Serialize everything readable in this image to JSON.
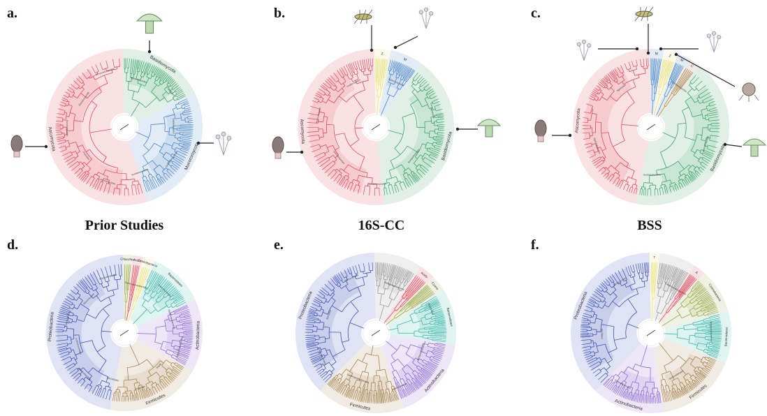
{
  "labels": {
    "a": "a.",
    "b": "b.",
    "c": "c.",
    "d": "d.",
    "e": "e.",
    "f": "f."
  },
  "columns": [
    "Prior Studies",
    "16S-CC",
    "BSS"
  ],
  "colors": {
    "red": "#e04a5a",
    "green": "#3da46a",
    "blue": "#4d87c7",
    "yellow": "#e8e07a",
    "navy": "#3d53b8",
    "purple": "#8f6bd6",
    "tan": "#a7844f",
    "teal": "#3cb8a8",
    "olive": "#9aa84a",
    "grey": "#9a9a9a"
  },
  "panels": [
    {
      "id": "a",
      "clades": [
        {
          "name": "Basidiomycota",
          "color": "green",
          "weight": 2
        },
        {
          "name": "Mucoromycota",
          "color": "blue",
          "weight": 3
        },
        {
          "name": "Ascomycota",
          "color": "red",
          "weight": 6
        }
      ],
      "sub": [
        "Agaricomycetes",
        "Agaricales",
        "Orbiliomycetes",
        "Dothideomycetes",
        "Sordariomycetes",
        "Pezizomycetes",
        "Pezizales",
        "Eurotiomycetes",
        "Glomeromycota",
        "Mortierellomycetes"
      ]
    },
    {
      "id": "b",
      "clades": [
        {
          "name": "Z",
          "color": "yellow",
          "weight": 0.4
        },
        {
          "name": "M",
          "color": "blue",
          "weight": 0.8
        },
        {
          "name": "Basidiomycota",
          "color": "green",
          "weight": 4.5
        },
        {
          "name": "Ascomycota",
          "color": "red",
          "weight": 6
        }
      ],
      "sub": [
        "Agaricomycetes",
        "Agaricales",
        "Sordariomycetes",
        "Dothideomycetes",
        "Eurotiomycetes",
        "Pezizomycetes",
        "Leotiomycetes"
      ]
    },
    {
      "id": "c",
      "clades": [
        {
          "name": "M",
          "color": "blue",
          "weight": 0.35
        },
        {
          "name": "Z",
          "color": "yellow",
          "weight": 0.35
        },
        {
          "name": "M",
          "color": "blue",
          "weight": 0.3
        },
        {
          "name": "C",
          "color": "tan",
          "weight": 0.3
        },
        {
          "name": "Basidiomycota",
          "color": "green",
          "weight": 5
        },
        {
          "name": "Ascomycota",
          "color": "red",
          "weight": 5.5
        }
      ],
      "sub": [
        "Dothideomycetes",
        "Pezizomycetes",
        "Sordariomycetes",
        "Agaricomycetes",
        "Agaricales"
      ]
    },
    {
      "id": "d",
      "clades": [
        {
          "name": "Chloroflexi",
          "color": "olive",
          "weight": 0.25
        },
        {
          "name": "Acido",
          "color": "red",
          "weight": 0.25
        },
        {
          "name": "Cyanobacteria",
          "color": "yellow",
          "weight": 0.3
        },
        {
          "name": "Bacteroidetes",
          "color": "teal",
          "weight": 1.4
        },
        {
          "name": "Actinobacteria",
          "color": "purple",
          "weight": 1.8
        },
        {
          "name": "Firmicutes",
          "color": "tan",
          "weight": 2.4
        },
        {
          "name": "Proteobacteria",
          "color": "navy",
          "weight": 5.6
        }
      ],
      "sub": [
        "Gammaproteobacteria",
        "Enterobacterales",
        "Betaproteobacteria",
        "Alphaproteobacteria",
        "Bacilli",
        "Clostridia",
        "Rhizobiales",
        "Burkholderiales",
        "Actinomycetales",
        "Lactobacillales",
        "Micrococcales",
        "Rhodobacterales"
      ]
    },
    {
      "id": "e",
      "clades": [
        {
          "name": "",
          "color": "grey",
          "weight": 1.2
        },
        {
          "name": "Acido",
          "color": "red",
          "weight": 0.4
        },
        {
          "name": "Cyano",
          "color": "olive",
          "weight": 0.4
        },
        {
          "name": "Bacteroidetes",
          "color": "teal",
          "weight": 1.4
        },
        {
          "name": "Actinobacteria",
          "color": "purple",
          "weight": 2.1
        },
        {
          "name": "Firmicutes",
          "color": "tan",
          "weight": 2.2
        },
        {
          "name": "Proteobacteria",
          "color": "navy",
          "weight": 4.6
        }
      ],
      "sub": [
        "Alphaproteobacteria",
        "Rhizobiales",
        "Betaproteobacteria",
        "Burkholderiales",
        "Gammaproteobacteria",
        "Enterobacterales",
        "Bacillales",
        "Micrococcales"
      ]
    },
    {
      "id": "f",
      "clades": [
        {
          "name": "T",
          "color": "yellow",
          "weight": 0.25
        },
        {
          "name": "",
          "color": "grey",
          "weight": 0.9
        },
        {
          "name": "A",
          "color": "red",
          "weight": 0.3
        },
        {
          "name": "Cyanobacteria",
          "color": "olive",
          "weight": 1.1
        },
        {
          "name": "Bacteroidetes",
          "color": "teal",
          "weight": 1.3
        },
        {
          "name": "Firmicutes",
          "color": "tan",
          "weight": 2.0
        },
        {
          "name": "Actinobacteria",
          "color": "purple",
          "weight": 1.8
        },
        {
          "name": "Proteobacteria",
          "color": "navy",
          "weight": 4.6
        }
      ],
      "sub": [
        "Gammaproteobacteria",
        "Betaproteobacteria",
        "Burkholderiales",
        "Enterobacterales",
        "Bacillales",
        "Micrococcales"
      ]
    }
  ],
  "organisms": {
    "a": [
      "mushroom-icon",
      "morel-icon",
      "mold-icon"
    ],
    "b": [
      "insect-icon",
      "mold-icon",
      "mushroom-icon",
      "morel-icon"
    ],
    "c": [
      "insect-icon",
      "mold-icon",
      "mold-icon",
      "puffball-icon",
      "mushroom-icon",
      "morel-icon"
    ]
  }
}
